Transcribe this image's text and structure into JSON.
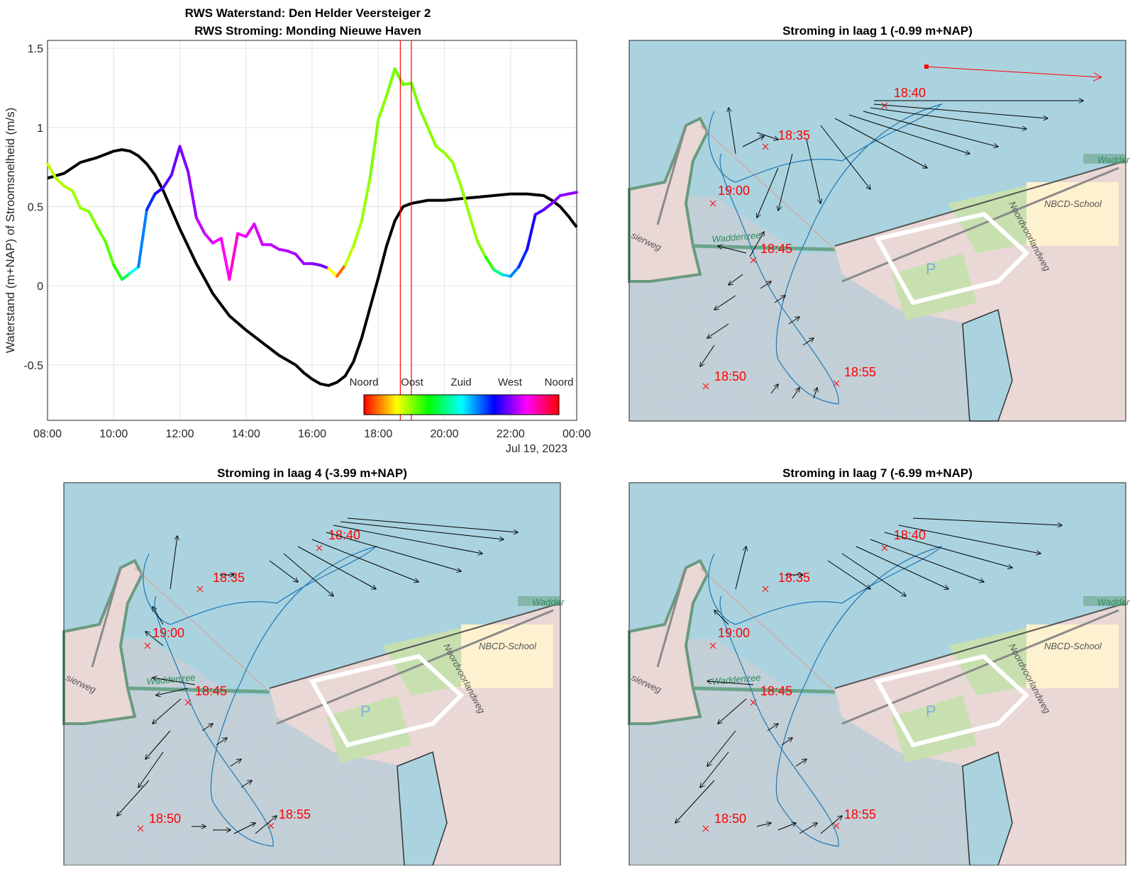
{
  "chart_data": [
    {
      "type": "line",
      "title": [
        "RWS Waterstand: Den Helder Veersteiger 2",
        "RWS Stroming: Monding Nieuwe Haven"
      ],
      "ylabel": "Waterstand (m+NAP) of Stroomsnelheid (m/s)",
      "xticks": [
        "08:00",
        "10:00",
        "12:00",
        "14:00",
        "16:00",
        "18:00",
        "20:00",
        "22:00",
        "00:00"
      ],
      "xsublabel": "Jul 19, 2023",
      "yticks": [
        "-0.5",
        "0",
        "0.5",
        "1",
        "1.5"
      ],
      "xlim_hours": [
        8,
        24
      ],
      "ylim": [
        -0.85,
        1.55
      ],
      "grid": true,
      "markers_hours": [
        18.667,
        19.0
      ],
      "colorbar_labels": [
        "Noord",
        "Oost",
        "Zuid",
        "West",
        "Noord"
      ],
      "series": [
        {
          "role": "Waterstand (m+NAP)",
          "color": "#000000",
          "x": [
            8.0,
            8.5,
            9.0,
            9.5,
            10.0,
            10.25,
            10.5,
            10.75,
            11.0,
            11.25,
            11.5,
            11.75,
            12.0,
            12.5,
            13.0,
            13.5,
            14.0,
            14.5,
            15.0,
            15.5,
            15.75,
            16.0,
            16.25,
            16.5,
            16.75,
            17.0,
            17.25,
            17.5,
            17.75,
            18.0,
            18.25,
            18.5,
            18.75,
            19.0,
            19.5,
            20.0,
            20.5,
            21.0,
            21.5,
            22.0,
            22.5,
            23.0,
            23.25,
            23.5,
            23.75,
            24.0
          ],
          "y": [
            0.68,
            0.71,
            0.78,
            0.81,
            0.85,
            0.86,
            0.85,
            0.82,
            0.77,
            0.7,
            0.6,
            0.48,
            0.36,
            0.14,
            -0.05,
            -0.19,
            -0.28,
            -0.36,
            -0.44,
            -0.5,
            -0.55,
            -0.59,
            -0.62,
            -0.63,
            -0.61,
            -0.57,
            -0.48,
            -0.33,
            -0.14,
            0.05,
            0.25,
            0.41,
            0.5,
            0.52,
            0.54,
            0.54,
            0.55,
            0.56,
            0.57,
            0.58,
            0.58,
            0.57,
            0.54,
            0.5,
            0.44,
            0.37
          ]
        },
        {
          "role": "Stroomsnelheid (m/s)",
          "color": "hsv(richting)",
          "x": [
            8.0,
            8.25,
            8.5,
            8.75,
            9.0,
            9.25,
            9.5,
            9.75,
            10.0,
            10.25,
            10.5,
            10.75,
            11.0,
            11.25,
            11.5,
            11.75,
            12.0,
            12.25,
            12.5,
            12.75,
            13.0,
            13.25,
            13.5,
            13.75,
            14.0,
            14.25,
            14.5,
            14.75,
            15.0,
            15.25,
            15.5,
            15.75,
            16.0,
            16.25,
            16.5,
            16.75,
            17.0,
            17.25,
            17.5,
            17.75,
            18.0,
            18.25,
            18.5,
            18.75,
            19.0,
            19.25,
            19.5,
            19.75,
            20.0,
            20.25,
            20.5,
            20.75,
            21.0,
            21.25,
            21.5,
            21.75,
            22.0,
            22.25,
            22.5,
            22.75,
            23.0,
            23.25,
            23.5,
            23.75,
            24.0
          ],
          "y": [
            0.77,
            0.68,
            0.63,
            0.6,
            0.49,
            0.47,
            0.37,
            0.28,
            0.13,
            0.04,
            0.08,
            0.12,
            0.48,
            0.58,
            0.62,
            0.7,
            0.88,
            0.72,
            0.43,
            0.33,
            0.27,
            0.3,
            0.04,
            0.33,
            0.31,
            0.39,
            0.26,
            0.26,
            0.23,
            0.22,
            0.2,
            0.14,
            0.14,
            0.13,
            0.11,
            0.06,
            0.13,
            0.25,
            0.41,
            0.68,
            1.05,
            1.2,
            1.37,
            1.27,
            1.28,
            1.12,
            1.0,
            0.88,
            0.84,
            0.78,
            0.63,
            0.45,
            0.28,
            0.18,
            0.1,
            0.07,
            0.06,
            0.12,
            0.23,
            0.45,
            0.48,
            0.52,
            0.57,
            0.58,
            0.59
          ],
          "direction_deg": [
            75,
            78,
            80,
            82,
            85,
            90,
            95,
            100,
            110,
            140,
            180,
            210,
            230,
            250,
            260,
            265,
            270,
            275,
            285,
            290,
            295,
            300,
            310,
            300,
            295,
            290,
            288,
            285,
            283,
            280,
            278,
            275,
            270,
            265,
            60,
            25,
            75,
            80,
            85,
            90,
            88,
            92,
            95,
            95,
            92,
            90,
            88,
            85,
            85,
            85,
            85,
            85,
            90,
            110,
            150,
            190,
            210,
            230,
            245,
            255,
            262,
            268,
            272,
            275,
            278
          ]
        }
      ]
    },
    {
      "type": "scatter",
      "title": "Stroming in laag 1 (-0.99 m+NAP)",
      "time_labels": [
        "18:35",
        "18:40",
        "18:45",
        "18:50",
        "18:55",
        "19:00"
      ],
      "map_labels": [
        "NBCD-School",
        "Noordvoorlandweg",
        "Waddenzee",
        "P",
        "Wadder",
        "sierweg"
      ]
    },
    {
      "type": "scatter",
      "title": "Stroming in laag 4 (-3.99 m+NAP)",
      "time_labels": [
        "18:35",
        "18:40",
        "18:45",
        "18:50",
        "18:55",
        "19:00"
      ],
      "map_labels": [
        "NBCD-School",
        "Noordvoorlandweg",
        "Waddenzee",
        "P",
        "Wadder",
        "sierweg"
      ]
    },
    {
      "type": "scatter",
      "title": "Stroming in laag 7 (-6.99 m+NAP)",
      "time_labels": [
        "18:35",
        "18:40",
        "18:45",
        "18:50",
        "18:55",
        "19:00"
      ],
      "map_labels": [
        "NBCD-School",
        "Noordvoorlandweg",
        "Waddenzee",
        "P",
        "Wadder",
        "sierweg"
      ]
    }
  ]
}
